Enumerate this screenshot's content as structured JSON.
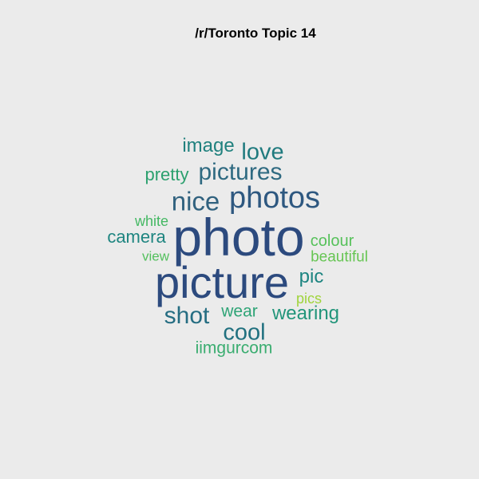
{
  "title": "/r/Toronto Topic 14",
  "words": [
    {
      "text": "photo",
      "color": "#2c4a7e"
    },
    {
      "text": "picture",
      "color": "#2c4a7e"
    },
    {
      "text": "photos",
      "color": "#2e5880"
    },
    {
      "text": "nice",
      "color": "#31627f"
    },
    {
      "text": "pictures",
      "color": "#2f6a81"
    },
    {
      "text": "love",
      "color": "#1f7a7e"
    },
    {
      "text": "image",
      "color": "#20817e"
    },
    {
      "text": "cool",
      "color": "#20707f"
    },
    {
      "text": "shot",
      "color": "#256d82"
    },
    {
      "text": "camera",
      "color": "#1e8580"
    },
    {
      "text": "wearing",
      "color": "#22957a"
    },
    {
      "text": "pic",
      "color": "#1c8480"
    },
    {
      "text": "pretty",
      "color": "#2ba06e"
    },
    {
      "text": "wear",
      "color": "#2ea476"
    },
    {
      "text": "iimgurcom",
      "color": "#3aad70"
    },
    {
      "text": "white",
      "color": "#44b863"
    },
    {
      "text": "view",
      "color": "#53c05d"
    },
    {
      "text": "colour",
      "color": "#56c15a"
    },
    {
      "text": "beautiful",
      "color": "#66c553"
    },
    {
      "text": "pics",
      "color": "#9fd43b"
    }
  ]
}
